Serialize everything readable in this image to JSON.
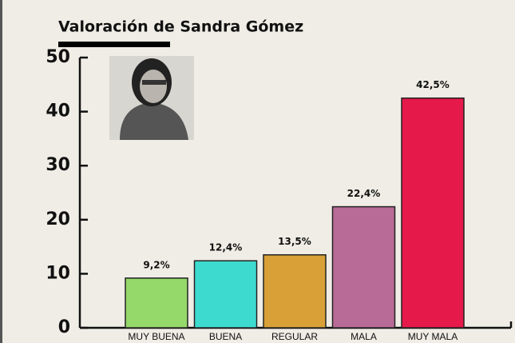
{
  "chart_data": {
    "type": "bar",
    "title": "Valoración de Sandra Gómez",
    "categories": [
      "MUY BUENA",
      "BUENA",
      "REGULAR",
      "MALA",
      "MUY MALA"
    ],
    "values": [
      9.2,
      12.4,
      13.5,
      22.4,
      42.5
    ],
    "value_labels": [
      "9,2%",
      "12,4%",
      "13,5%",
      "22,4%",
      "42,5%"
    ],
    "colors": [
      "#95d96a",
      "#3ddbcf",
      "#d8a037",
      "#b86b96",
      "#e5194a"
    ],
    "ylim": [
      0,
      50
    ],
    "yticks": [
      0,
      10,
      20,
      30,
      40,
      50
    ],
    "grid": false
  }
}
